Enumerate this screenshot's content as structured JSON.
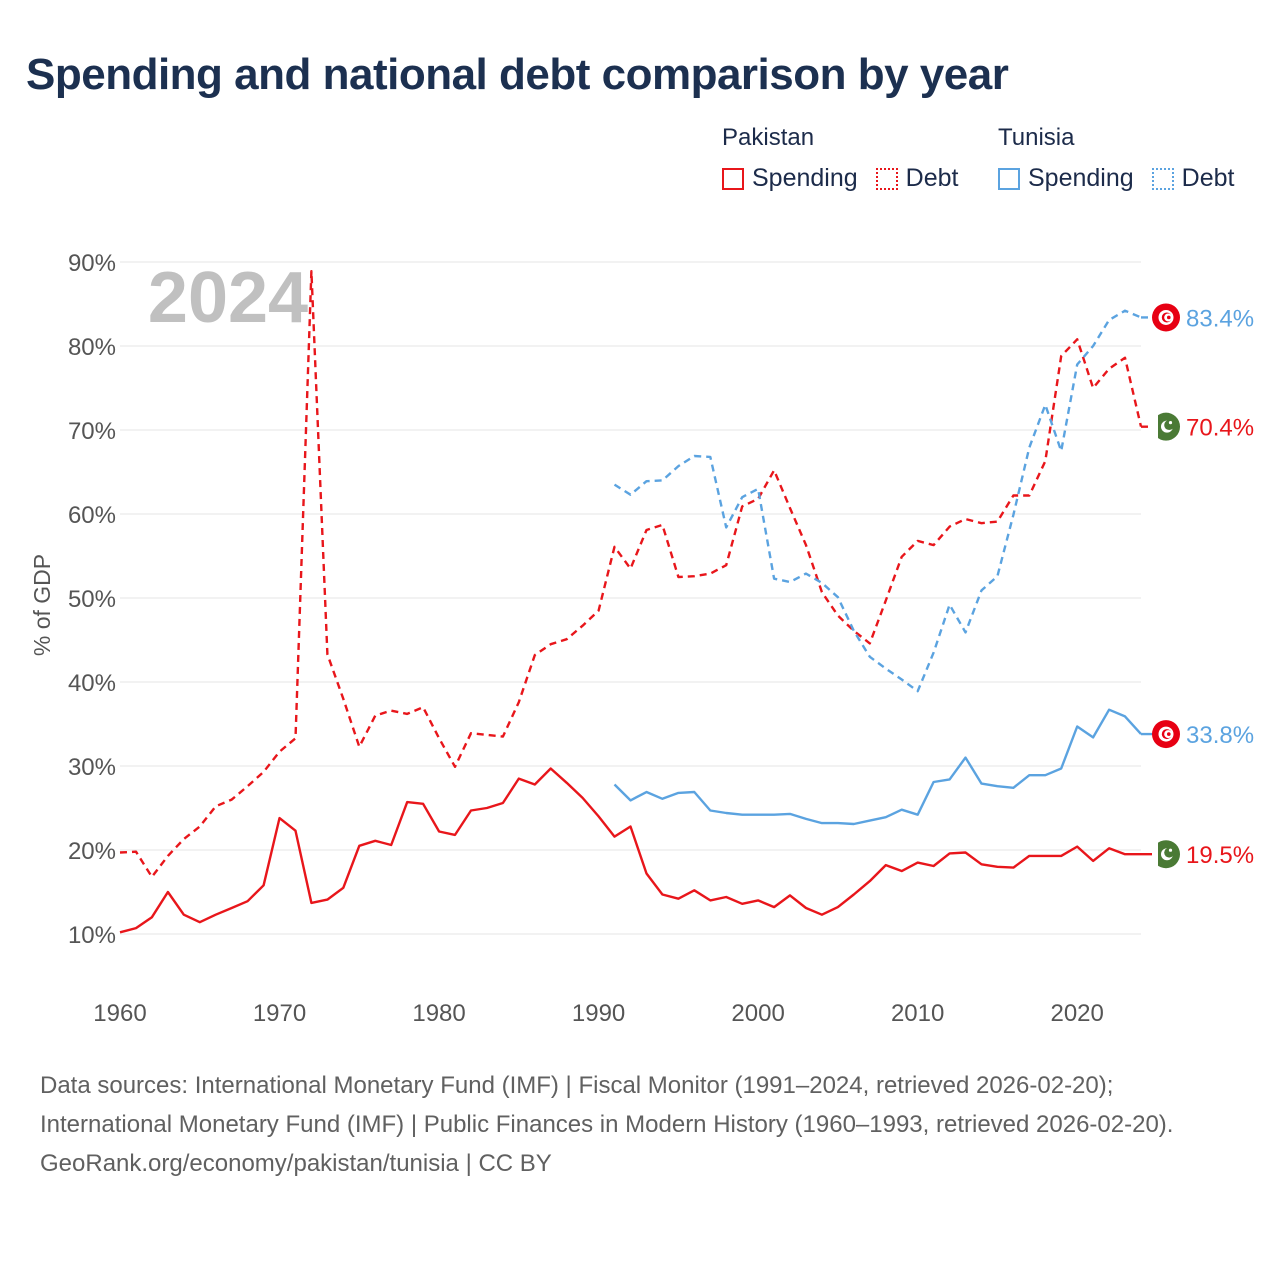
{
  "chart_data": {
    "type": "line",
    "title": "Spending and national debt comparison by year",
    "year_label": "2024",
    "ylabel": "% of GDP",
    "xlabel": "",
    "ylim": [
      10,
      90
    ],
    "xlim": [
      1960,
      2024
    ],
    "y_ticks": [
      10,
      20,
      30,
      40,
      50,
      60,
      70,
      80,
      90
    ],
    "y_tick_labels": [
      "10%",
      "20%",
      "30%",
      "40%",
      "50%",
      "60%",
      "70%",
      "80%",
      "90%"
    ],
    "x_ticks": [
      1960,
      1970,
      1980,
      1990,
      2000,
      2010,
      2020
    ],
    "x_tick_labels": [
      "1960",
      "1970",
      "1980",
      "1990",
      "2000",
      "2010",
      "2020"
    ],
    "legend": {
      "groups": [
        {
          "country": "Pakistan",
          "items": [
            {
              "label": "Spending",
              "style": "solid",
              "color": "#e8161b"
            },
            {
              "label": "Debt",
              "style": "dotted",
              "color": "#e8161b"
            }
          ]
        },
        {
          "country": "Tunisia",
          "items": [
            {
              "label": "Spending",
              "style": "solid",
              "color": "#5ba3e0"
            },
            {
              "label": "Debt",
              "style": "dotted",
              "color": "#5ba3e0"
            }
          ]
        }
      ]
    },
    "series": [
      {
        "name": "Pakistan Debt",
        "country": "Pakistan",
        "color": "#e8161b",
        "dash": "dashed",
        "end_label": "70.4%",
        "flag_icon": "pakistan-flag",
        "x": [
          1960,
          1961,
          1962,
          1963,
          1964,
          1965,
          1966,
          1967,
          1968,
          1969,
          1970,
          1971,
          1972,
          1973,
          1974,
          1975,
          1976,
          1977,
          1978,
          1979,
          1980,
          1981,
          1982,
          1983,
          1984,
          1985,
          1986,
          1987,
          1988,
          1989,
          1990,
          1991,
          1992,
          1993,
          1994,
          1995,
          1996,
          1997,
          1998,
          1999,
          2000,
          2001,
          2002,
          2003,
          2004,
          2005,
          2006,
          2007,
          2008,
          2009,
          2010,
          2011,
          2012,
          2013,
          2014,
          2015,
          2016,
          2017,
          2018,
          2019,
          2020,
          2021,
          2022,
          2023,
          2024
        ],
        "values": [
          19.7,
          19.8,
          16.8,
          19.3,
          21.3,
          22.8,
          25.2,
          26.0,
          27.6,
          29.3,
          31.7,
          33.3,
          88.9,
          43.3,
          38.0,
          32.3,
          36.0,
          36.6,
          36.2,
          37.0,
          33.3,
          29.9,
          33.9,
          33.7,
          33.5,
          37.6,
          43.2,
          44.5,
          45.1,
          46.7,
          48.5,
          56.1,
          53.5,
          58.1,
          58.7,
          52.5,
          52.6,
          52.9,
          53.9,
          60.9,
          61.8,
          65.2,
          60.7,
          56.3,
          50.7,
          47.9,
          46.1,
          44.6,
          49.7,
          54.9,
          56.8,
          56.3,
          58.5,
          59.4,
          58.9,
          59.1,
          62.2,
          62.2,
          66.3,
          78.8,
          80.8,
          75.0,
          77.3,
          78.6,
          70.4
        ]
      },
      {
        "name": "Pakistan Spending",
        "country": "Pakistan",
        "color": "#e8161b",
        "dash": "solid",
        "end_label": "19.5%",
        "flag_icon": "pakistan-flag",
        "x": [
          1960,
          1961,
          1962,
          1963,
          1964,
          1965,
          1966,
          1967,
          1968,
          1969,
          1970,
          1971,
          1972,
          1973,
          1974,
          1975,
          1976,
          1977,
          1978,
          1979,
          1980,
          1981,
          1982,
          1983,
          1984,
          1985,
          1986,
          1987,
          1988,
          1989,
          1990,
          1991,
          1992,
          1993,
          1994,
          1995,
          1996,
          1997,
          1998,
          1999,
          2000,
          2001,
          2002,
          2003,
          2004,
          2005,
          2006,
          2007,
          2008,
          2009,
          2010,
          2011,
          2012,
          2013,
          2014,
          2015,
          2016,
          2017,
          2018,
          2019,
          2020,
          2021,
          2022,
          2023,
          2024
        ],
        "values": [
          10.2,
          10.7,
          12.0,
          15.0,
          12.3,
          11.4,
          12.3,
          13.1,
          13.9,
          15.8,
          23.8,
          22.3,
          13.7,
          14.1,
          15.5,
          20.5,
          21.1,
          20.6,
          25.7,
          25.5,
          22.2,
          21.8,
          24.7,
          25.0,
          25.6,
          28.5,
          27.8,
          29.7,
          28.0,
          26.2,
          24.0,
          21.6,
          22.8,
          17.2,
          14.7,
          14.2,
          15.2,
          14.0,
          14.4,
          13.6,
          14.0,
          13.2,
          14.6,
          13.1,
          12.3,
          13.2,
          14.7,
          16.3,
          18.2,
          17.5,
          18.5,
          18.1,
          19.6,
          19.7,
          18.3,
          18.0,
          17.9,
          19.3,
          19.3,
          19.3,
          20.4,
          18.7,
          20.2,
          19.5,
          19.5
        ]
      },
      {
        "name": "Tunisia Debt",
        "country": "Tunisia",
        "color": "#5ba3e0",
        "dash": "dashed",
        "end_label": "83.4%",
        "flag_icon": "tunisia-flag",
        "x": [
          1991,
          1992,
          1993,
          1994,
          1995,
          1996,
          1997,
          1998,
          1999,
          2000,
          2001,
          2002,
          2003,
          2004,
          2005,
          2006,
          2007,
          2008,
          2009,
          2010,
          2011,
          2012,
          2013,
          2014,
          2015,
          2016,
          2017,
          2018,
          2019,
          2020,
          2021,
          2022,
          2023,
          2024
        ],
        "values": [
          63.5,
          62.3,
          63.9,
          64.0,
          65.7,
          66.9,
          66.8,
          58.4,
          62.0,
          63.0,
          52.3,
          51.9,
          52.9,
          51.8,
          50.1,
          46.1,
          43.0,
          41.6,
          40.3,
          38.9,
          43.5,
          49.2,
          45.9,
          50.9,
          52.6,
          59.9,
          67.9,
          73.0,
          67.5,
          77.8,
          80.0,
          83.1,
          84.2,
          83.4
        ]
      },
      {
        "name": "Tunisia Spending",
        "country": "Tunisia",
        "color": "#5ba3e0",
        "dash": "solid",
        "end_label": "33.8%",
        "flag_icon": "tunisia-flag",
        "x": [
          1991,
          1992,
          1993,
          1994,
          1995,
          1996,
          1997,
          1998,
          1999,
          2000,
          2001,
          2002,
          2003,
          2004,
          2005,
          2006,
          2007,
          2008,
          2009,
          2010,
          2011,
          2012,
          2013,
          2014,
          2015,
          2016,
          2017,
          2018,
          2019,
          2020,
          2021,
          2022,
          2023,
          2024
        ],
        "values": [
          27.8,
          25.9,
          26.9,
          26.1,
          26.8,
          26.9,
          24.7,
          24.4,
          24.2,
          24.2,
          24.2,
          24.3,
          23.7,
          23.2,
          23.2,
          23.1,
          23.5,
          23.9,
          24.8,
          24.2,
          28.1,
          28.4,
          31.0,
          27.9,
          27.6,
          27.4,
          28.9,
          28.9,
          29.7,
          34.7,
          33.4,
          36.7,
          35.9,
          33.8
        ]
      }
    ]
  },
  "footer": {
    "sources": "Data sources: International Monetary Fund (IMF) | Fiscal Monitor (1991–2024, retrieved 2026-02-20); International Monetary Fund (IMF) | Public Finances in Modern History (1960–1993, retrieved 2026-02-20).",
    "credit": "GeoRank.org/economy/pakistan/tunisia | CC BY"
  }
}
